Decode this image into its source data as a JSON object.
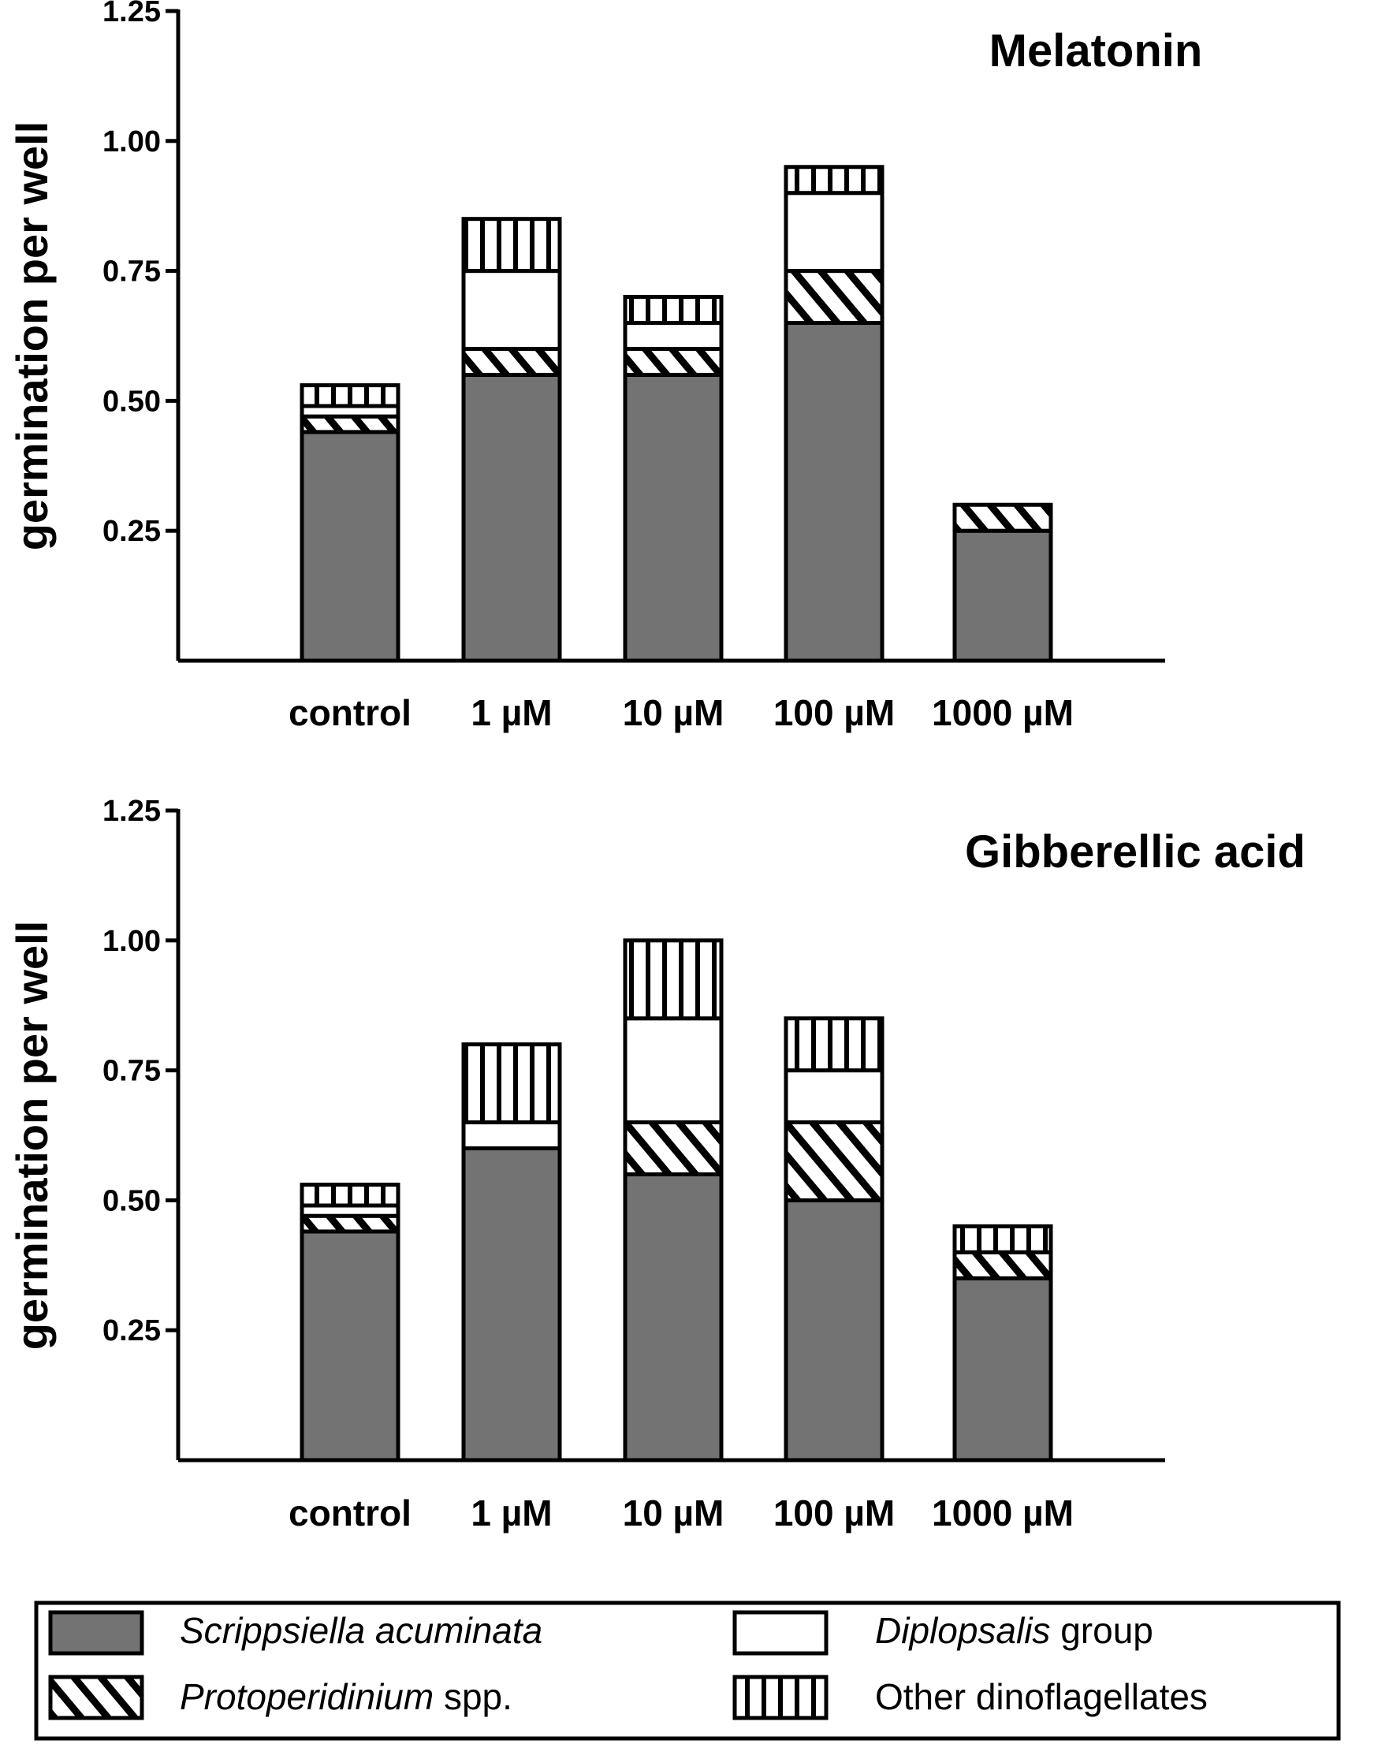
{
  "chart_data": [
    {
      "type": "bar",
      "stacked": true,
      "title": "Melatonin",
      "ylabel": "germination per well",
      "xlabel": "",
      "ylim": [
        0,
        1.25
      ],
      "yticks": [
        "0.25",
        "0.50",
        "0.75",
        "1.00",
        "1.25"
      ],
      "categories": [
        "control",
        "1 µM",
        "10 µM",
        "100 µM",
        "1000 µM"
      ],
      "series": [
        {
          "key": "scrippsiella",
          "values": [
            0.44,
            0.55,
            0.55,
            0.65,
            0.25
          ]
        },
        {
          "key": "protoperidinium",
          "values": [
            0.03,
            0.05,
            0.05,
            0.1,
            0.05
          ]
        },
        {
          "key": "diplopsalis",
          "values": [
            0.02,
            0.15,
            0.05,
            0.15,
            0.0
          ]
        },
        {
          "key": "other",
          "values": [
            0.04,
            0.1,
            0.05,
            0.05,
            0.0
          ]
        }
      ]
    },
    {
      "type": "bar",
      "stacked": true,
      "title": "Gibberellic acid",
      "ylabel": "germination per well",
      "xlabel": "",
      "ylim": [
        0,
        1.25
      ],
      "yticks": [
        "0.25",
        "0.50",
        "0.75",
        "1.00",
        "1.25"
      ],
      "categories": [
        "control",
        "1 µM",
        "10 µM",
        "100 µM",
        "1000 µM"
      ],
      "series": [
        {
          "key": "scrippsiella",
          "values": [
            0.44,
            0.6,
            0.55,
            0.5,
            0.35
          ]
        },
        {
          "key": "protoperidinium",
          "values": [
            0.03,
            0.0,
            0.1,
            0.15,
            0.05
          ]
        },
        {
          "key": "diplopsalis",
          "values": [
            0.02,
            0.05,
            0.2,
            0.1,
            0.0
          ]
        },
        {
          "key": "other",
          "values": [
            0.04,
            0.15,
            0.15,
            0.1,
            0.05
          ]
        }
      ]
    }
  ],
  "legend": {
    "placement": "bottom",
    "items": [
      {
        "key": "scrippsiella",
        "italic": "Scrippsiella acuminata",
        "plain": "",
        "fill": "#737373",
        "pattern": "solid"
      },
      {
        "key": "diplopsalis",
        "italic": "Diplopsalis",
        "plain": " group",
        "fill": "#ffffff",
        "pattern": "none"
      },
      {
        "key": "protoperidinium",
        "italic": "Protoperidinium",
        "plain": " spp.",
        "fill": "#ffffff",
        "pattern": "diagonal"
      },
      {
        "key": "other",
        "italic": "",
        "plain": "Other dinoflagellates",
        "fill": "#ffffff",
        "pattern": "vertical"
      }
    ]
  }
}
